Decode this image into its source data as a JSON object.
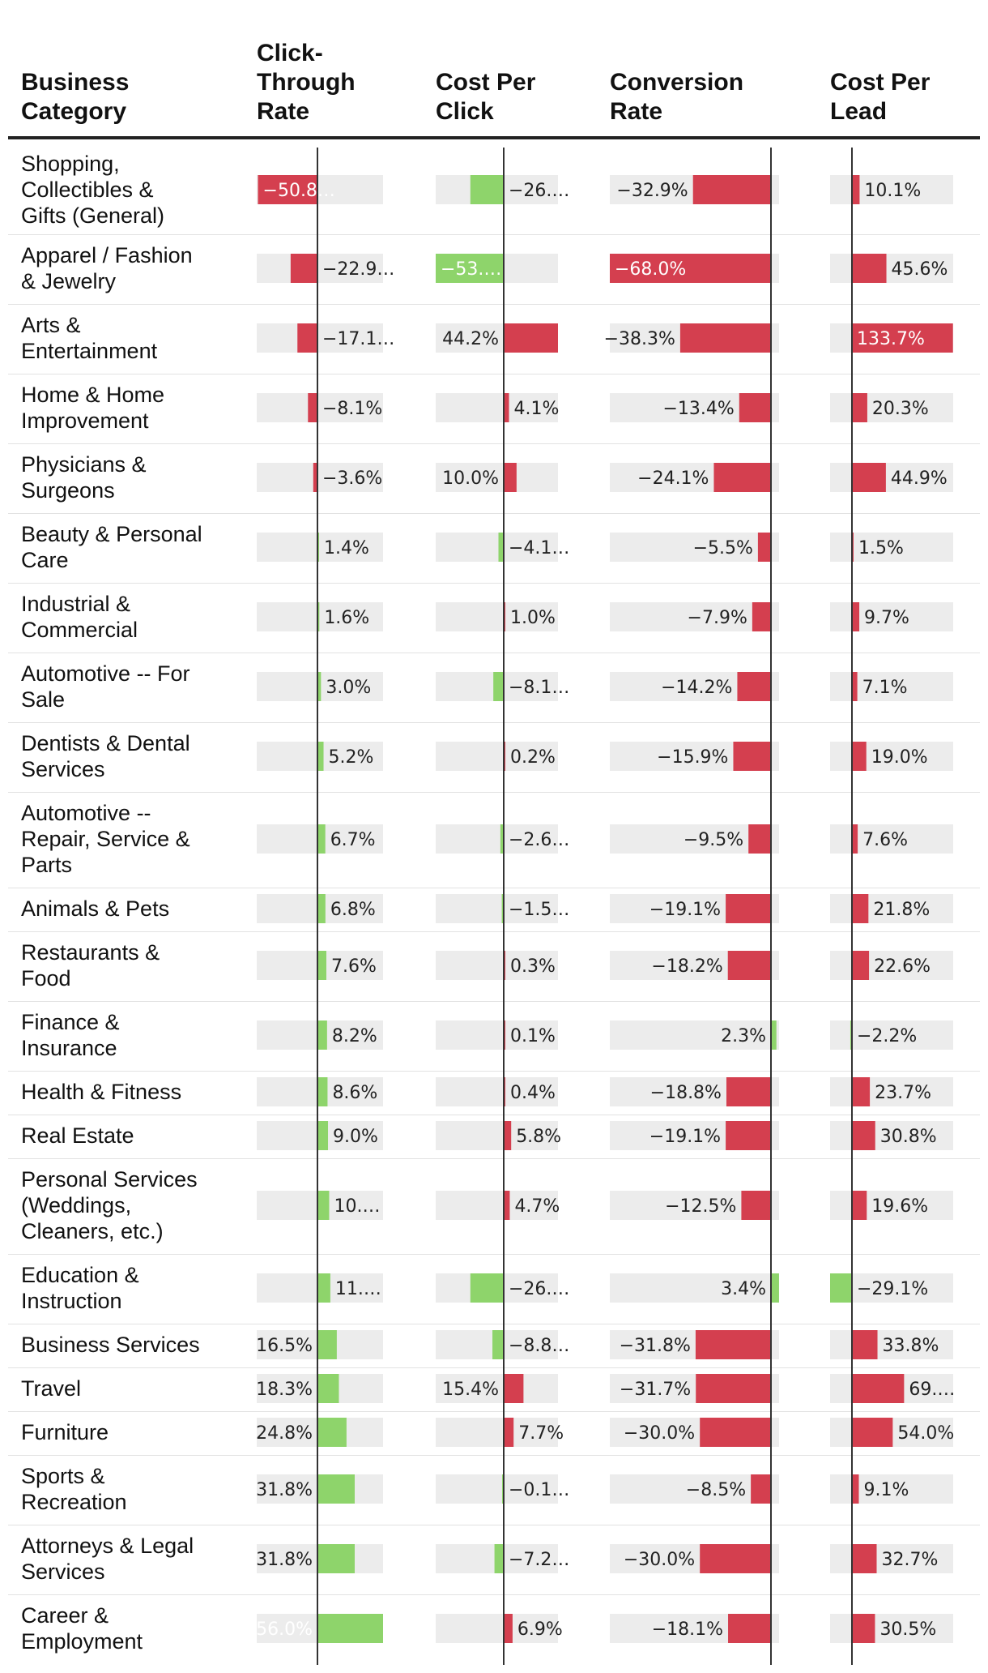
{
  "chart_data": {
    "type": "table",
    "title": "",
    "columns": [
      {
        "key": "category",
        "label": "Business Category",
        "label_lines": [
          "Business",
          "Category"
        ]
      },
      {
        "key": "ctr",
        "label": "Click-Through Rate",
        "label_lines": [
          "Click-",
          "Through",
          "Rate"
        ],
        "scale_max": 56,
        "higher_is_better": true
      },
      {
        "key": "cpc",
        "label": "Cost Per Click",
        "label_lines": [
          "Cost Per",
          "Click"
        ],
        "scale_max": 53,
        "higher_is_better": false
      },
      {
        "key": "cvr",
        "label": "Conversion Rate",
        "label_lines": [
          "Conversion",
          "Rate"
        ],
        "scale_max": 68,
        "higher_is_better": true
      },
      {
        "key": "cpl",
        "label": "Cost Per Lead",
        "label_lines": [
          "Cost Per",
          "Lead"
        ],
        "scale_max": 134,
        "higher_is_better": false
      }
    ],
    "colors": {
      "good": "#8ed46b",
      "bad": "#d43f4f",
      "track": "#ececec",
      "axis": "#333333",
      "rule": "#222222",
      "divider": "#e2e2e2"
    },
    "rows": [
      {
        "category": "Shopping, Collectibles & Gifts (General)",
        "lines": [
          "Shopping,",
          "Collectibles &",
          "Gifts (General)"
        ],
        "ctr": -50.8,
        "cpc": -26.0,
        "cvr": -32.9,
        "cpl": 10.1,
        "labels": {
          "ctr": "−50.8…",
          "cpc": "−26.…",
          "cvr": "−32.9%",
          "cpl": "10.1%"
        }
      },
      {
        "category": "Apparel / Fashion & Jewelry",
        "lines": [
          "Apparel / Fashion",
          "& Jewelry"
        ],
        "ctr": -22.9,
        "cpc": -53.0,
        "cvr": -68.0,
        "cpl": 45.6,
        "labels": {
          "ctr": "−22.9…",
          "cpc": "−53.…",
          "cvr": "−68.0%",
          "cpl": "45.6%"
        }
      },
      {
        "category": "Arts & Entertainment",
        "lines": [
          "Arts &",
          "Entertainment"
        ],
        "ctr": -17.1,
        "cpc": 44.2,
        "cvr": -38.3,
        "cpl": 133.7,
        "labels": {
          "ctr": "−17.1…",
          "cpc": "44.2%",
          "cvr": "−38.3%",
          "cpl": "133.7%"
        }
      },
      {
        "category": "Home & Home Improvement",
        "lines": [
          "Home & Home",
          "Improvement"
        ],
        "ctr": -8.1,
        "cpc": 4.1,
        "cvr": -13.4,
        "cpl": 20.3,
        "labels": {
          "ctr": "−8.1%",
          "cpc": "4.1%",
          "cvr": "−13.4%",
          "cpl": "20.3%"
        }
      },
      {
        "category": "Physicians & Surgeons",
        "lines": [
          "Physicians &",
          "Surgeons"
        ],
        "ctr": -3.6,
        "cpc": 10.0,
        "cvr": -24.1,
        "cpl": 44.9,
        "labels": {
          "ctr": "−3.6%",
          "cpc": "10.0%",
          "cvr": "−24.1%",
          "cpl": "44.9%"
        }
      },
      {
        "category": "Beauty & Personal Care",
        "lines": [
          "Beauty & Personal",
          "Care"
        ],
        "ctr": 1.4,
        "cpc": -4.1,
        "cvr": -5.5,
        "cpl": 1.5,
        "labels": {
          "ctr": "1.4%",
          "cpc": "−4.1…",
          "cvr": "−5.5%",
          "cpl": "1.5%"
        }
      },
      {
        "category": "Industrial & Commercial",
        "lines": [
          "Industrial &",
          "Commercial"
        ],
        "ctr": 1.6,
        "cpc": 1.0,
        "cvr": -7.9,
        "cpl": 9.7,
        "labels": {
          "ctr": "1.6%",
          "cpc": "1.0%",
          "cvr": "−7.9%",
          "cpl": "9.7%"
        }
      },
      {
        "category": "Automotive -- For Sale",
        "lines": [
          "Automotive -- For",
          "Sale"
        ],
        "ctr": 3.0,
        "cpc": -8.1,
        "cvr": -14.2,
        "cpl": 7.1,
        "labels": {
          "ctr": "3.0%",
          "cpc": "−8.1…",
          "cvr": "−14.2%",
          "cpl": "7.1%"
        }
      },
      {
        "category": "Dentists & Dental Services",
        "lines": [
          "Dentists & Dental",
          "Services"
        ],
        "ctr": 5.2,
        "cpc": 0.2,
        "cvr": -15.9,
        "cpl": 19.0,
        "labels": {
          "ctr": "5.2%",
          "cpc": "0.2%",
          "cvr": "−15.9%",
          "cpl": "19.0%"
        }
      },
      {
        "category": "Automotive -- Repair, Service & Parts",
        "lines": [
          "Automotive --",
          "Repair, Service &",
          "Parts"
        ],
        "ctr": 6.7,
        "cpc": -2.6,
        "cvr": -9.5,
        "cpl": 7.6,
        "labels": {
          "ctr": "6.7%",
          "cpc": "−2.6…",
          "cvr": "−9.5%",
          "cpl": "7.6%"
        }
      },
      {
        "category": "Animals & Pets",
        "lines": [
          "Animals & Pets"
        ],
        "ctr": 6.8,
        "cpc": -1.5,
        "cvr": -19.1,
        "cpl": 21.8,
        "labels": {
          "ctr": "6.8%",
          "cpc": "−1.5…",
          "cvr": "−19.1%",
          "cpl": "21.8%"
        }
      },
      {
        "category": "Restaurants & Food",
        "lines": [
          "Restaurants &",
          "Food"
        ],
        "ctr": 7.6,
        "cpc": 0.3,
        "cvr": -18.2,
        "cpl": 22.6,
        "labels": {
          "ctr": "7.6%",
          "cpc": "0.3%",
          "cvr": "−18.2%",
          "cpl": "22.6%"
        }
      },
      {
        "category": "Finance & Insurance",
        "lines": [
          "Finance &",
          "Insurance"
        ],
        "ctr": 8.2,
        "cpc": 0.1,
        "cvr": 2.3,
        "cpl": -2.2,
        "labels": {
          "ctr": "8.2%",
          "cpc": "0.1%",
          "cvr": "2.3%",
          "cpl": "−2.2%"
        }
      },
      {
        "category": "Health & Fitness",
        "lines": [
          "Health & Fitness"
        ],
        "ctr": 8.6,
        "cpc": 0.4,
        "cvr": -18.8,
        "cpl": 23.7,
        "labels": {
          "ctr": "8.6%",
          "cpc": "0.4%",
          "cvr": "−18.8%",
          "cpl": "23.7%"
        }
      },
      {
        "category": "Real Estate",
        "lines": [
          "Real Estate"
        ],
        "ctr": 9.0,
        "cpc": 5.8,
        "cvr": -19.1,
        "cpl": 30.8,
        "labels": {
          "ctr": "9.0%",
          "cpc": "5.8%",
          "cvr": "−19.1%",
          "cpl": "30.8%"
        }
      },
      {
        "category": "Personal Services (Weddings, Cleaners, etc.)",
        "lines": [
          "Personal Services",
          "(Weddings,",
          "Cleaners, etc.)"
        ],
        "ctr": 10.0,
        "cpc": 4.7,
        "cvr": -12.5,
        "cpl": 19.6,
        "labels": {
          "ctr": "10.…",
          "cpc": "4.7%",
          "cvr": "−12.5%",
          "cpl": "19.6%"
        }
      },
      {
        "category": "Education & Instruction",
        "lines": [
          "Education &",
          "Instruction"
        ],
        "ctr": 11.0,
        "cpc": -26.0,
        "cvr": 3.4,
        "cpl": -29.1,
        "labels": {
          "ctr": "11.…",
          "cpc": "−26.…",
          "cvr": "3.4%",
          "cpl": "−29.1%"
        }
      },
      {
        "category": "Business Services",
        "lines": [
          "Business Services"
        ],
        "ctr": 16.5,
        "cpc": -8.8,
        "cvr": -31.8,
        "cpl": 33.8,
        "labels": {
          "ctr": "16.5%",
          "cpc": "−8.8…",
          "cvr": "−31.8%",
          "cpl": "33.8%"
        }
      },
      {
        "category": "Travel",
        "lines": [
          "Travel"
        ],
        "ctr": 18.3,
        "cpc": 15.4,
        "cvr": -31.7,
        "cpl": 69.0,
        "labels": {
          "ctr": "18.3%",
          "cpc": "15.4%",
          "cvr": "−31.7%",
          "cpl": "69.…"
        }
      },
      {
        "category": "Furniture",
        "lines": [
          "Furniture"
        ],
        "ctr": 24.8,
        "cpc": 7.7,
        "cvr": -30.0,
        "cpl": 54.0,
        "labels": {
          "ctr": "24.8%",
          "cpc": "7.7%",
          "cvr": "−30.0%",
          "cpl": "54.0%"
        }
      },
      {
        "category": "Sports & Recreation",
        "lines": [
          "Sports &",
          "Recreation"
        ],
        "ctr": 31.8,
        "cpc": -0.1,
        "cvr": -8.5,
        "cpl": 9.1,
        "labels": {
          "ctr": "31.8%",
          "cpc": "−0.1…",
          "cvr": "−8.5%",
          "cpl": "9.1%"
        }
      },
      {
        "category": "Attorneys & Legal Services",
        "lines": [
          "Attorneys & Legal",
          "Services"
        ],
        "ctr": 31.8,
        "cpc": -7.2,
        "cvr": -30.0,
        "cpl": 32.7,
        "labels": {
          "ctr": "31.8%",
          "cpc": "−7.2…",
          "cvr": "−30.0%",
          "cpl": "32.7%"
        }
      },
      {
        "category": "Career & Employment",
        "lines": [
          "Career &",
          "Employment"
        ],
        "ctr": 56.0,
        "cpc": 6.9,
        "cvr": -18.1,
        "cpl": 30.5,
        "labels": {
          "ctr": "56.0%",
          "cpc": "6.9%",
          "cvr": "−18.1%",
          "cpl": "30.5%"
        }
      }
    ]
  }
}
